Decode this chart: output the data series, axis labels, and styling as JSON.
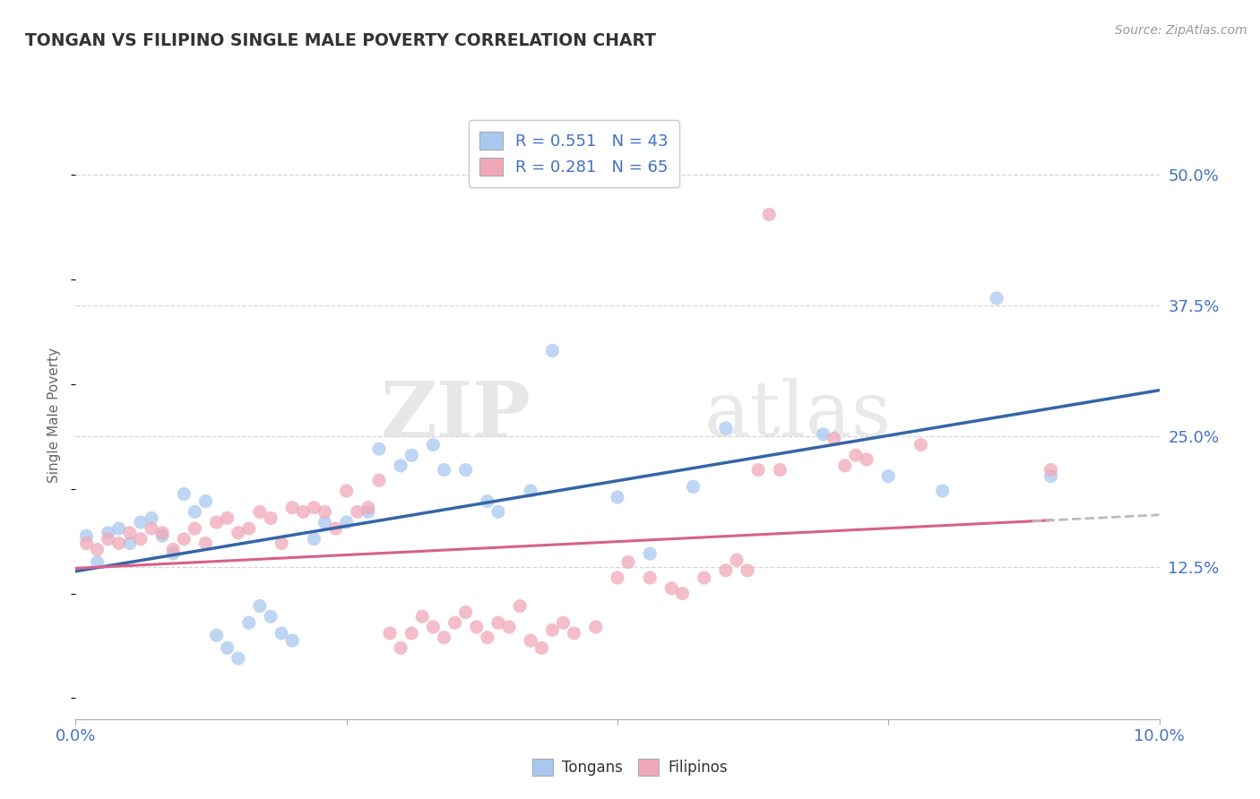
{
  "title": "TONGAN VS FILIPINO SINGLE MALE POVERTY CORRELATION CHART",
  "source": "Source: ZipAtlas.com",
  "ylabel": "Single Male Poverty",
  "ytick_labels": [
    "12.5%",
    "25.0%",
    "37.5%",
    "50.0%"
  ],
  "ytick_vals": [
    0.125,
    0.25,
    0.375,
    0.5
  ],
  "xlim": [
    0.0,
    0.1
  ],
  "ylim": [
    -0.02,
    0.56
  ],
  "tongan_color": "#A8C8F0",
  "filipino_color": "#F0A8B8",
  "tongan_R": 0.551,
  "tongan_N": 43,
  "filipino_R": 0.281,
  "filipino_N": 65,
  "tongan_scatter": [
    [
      0.001,
      0.155
    ],
    [
      0.002,
      0.13
    ],
    [
      0.003,
      0.158
    ],
    [
      0.004,
      0.162
    ],
    [
      0.005,
      0.148
    ],
    [
      0.006,
      0.168
    ],
    [
      0.007,
      0.172
    ],
    [
      0.008,
      0.155
    ],
    [
      0.009,
      0.138
    ],
    [
      0.01,
      0.195
    ],
    [
      0.011,
      0.178
    ],
    [
      0.012,
      0.188
    ],
    [
      0.013,
      0.06
    ],
    [
      0.014,
      0.048
    ],
    [
      0.015,
      0.038
    ],
    [
      0.016,
      0.072
    ],
    [
      0.017,
      0.088
    ],
    [
      0.018,
      0.078
    ],
    [
      0.019,
      0.062
    ],
    [
      0.02,
      0.055
    ],
    [
      0.022,
      0.152
    ],
    [
      0.023,
      0.168
    ],
    [
      0.025,
      0.168
    ],
    [
      0.027,
      0.178
    ],
    [
      0.028,
      0.238
    ],
    [
      0.03,
      0.222
    ],
    [
      0.031,
      0.232
    ],
    [
      0.033,
      0.242
    ],
    [
      0.034,
      0.218
    ],
    [
      0.036,
      0.218
    ],
    [
      0.038,
      0.188
    ],
    [
      0.039,
      0.178
    ],
    [
      0.042,
      0.198
    ],
    [
      0.044,
      0.332
    ],
    [
      0.05,
      0.192
    ],
    [
      0.053,
      0.138
    ],
    [
      0.057,
      0.202
    ],
    [
      0.06,
      0.258
    ],
    [
      0.069,
      0.252
    ],
    [
      0.075,
      0.212
    ],
    [
      0.08,
      0.198
    ],
    [
      0.085,
      0.382
    ],
    [
      0.09,
      0.212
    ]
  ],
  "filipino_scatter": [
    [
      0.001,
      0.148
    ],
    [
      0.002,
      0.142
    ],
    [
      0.003,
      0.152
    ],
    [
      0.004,
      0.148
    ],
    [
      0.005,
      0.158
    ],
    [
      0.006,
      0.152
    ],
    [
      0.007,
      0.162
    ],
    [
      0.008,
      0.158
    ],
    [
      0.009,
      0.142
    ],
    [
      0.01,
      0.152
    ],
    [
      0.011,
      0.162
    ],
    [
      0.012,
      0.148
    ],
    [
      0.013,
      0.168
    ],
    [
      0.014,
      0.172
    ],
    [
      0.015,
      0.158
    ],
    [
      0.016,
      0.162
    ],
    [
      0.017,
      0.178
    ],
    [
      0.018,
      0.172
    ],
    [
      0.019,
      0.148
    ],
    [
      0.02,
      0.182
    ],
    [
      0.021,
      0.178
    ],
    [
      0.022,
      0.182
    ],
    [
      0.023,
      0.178
    ],
    [
      0.024,
      0.162
    ],
    [
      0.025,
      0.198
    ],
    [
      0.026,
      0.178
    ],
    [
      0.027,
      0.182
    ],
    [
      0.028,
      0.208
    ],
    [
      0.029,
      0.062
    ],
    [
      0.03,
      0.048
    ],
    [
      0.031,
      0.062
    ],
    [
      0.032,
      0.078
    ],
    [
      0.033,
      0.068
    ],
    [
      0.034,
      0.058
    ],
    [
      0.035,
      0.072
    ],
    [
      0.036,
      0.082
    ],
    [
      0.037,
      0.068
    ],
    [
      0.038,
      0.058
    ],
    [
      0.039,
      0.072
    ],
    [
      0.04,
      0.068
    ],
    [
      0.041,
      0.088
    ],
    [
      0.042,
      0.055
    ],
    [
      0.043,
      0.048
    ],
    [
      0.044,
      0.065
    ],
    [
      0.045,
      0.072
    ],
    [
      0.046,
      0.062
    ],
    [
      0.048,
      0.068
    ],
    [
      0.05,
      0.115
    ],
    [
      0.051,
      0.13
    ],
    [
      0.053,
      0.115
    ],
    [
      0.055,
      0.105
    ],
    [
      0.056,
      0.1
    ],
    [
      0.058,
      0.115
    ],
    [
      0.06,
      0.122
    ],
    [
      0.061,
      0.132
    ],
    [
      0.062,
      0.122
    ],
    [
      0.063,
      0.218
    ],
    [
      0.064,
      0.462
    ],
    [
      0.065,
      0.218
    ],
    [
      0.07,
      0.248
    ],
    [
      0.071,
      0.222
    ],
    [
      0.072,
      0.232
    ],
    [
      0.073,
      0.228
    ],
    [
      0.078,
      0.242
    ],
    [
      0.09,
      0.218
    ]
  ],
  "watermark_zip": "ZIP",
  "watermark_atlas": "atlas",
  "legend_text_color": "#4472C4",
  "bg_color": "#FFFFFF",
  "grid_color": "#CCCCCC",
  "scatter_size": 120,
  "tongan_line_color": "#3465A8",
  "filipino_line_color": "#D8608A",
  "dashed_line_color": "#BBBBBB",
  "axis_color": "#AAAAAA",
  "label_color": "#666666",
  "title_color": "#333333"
}
